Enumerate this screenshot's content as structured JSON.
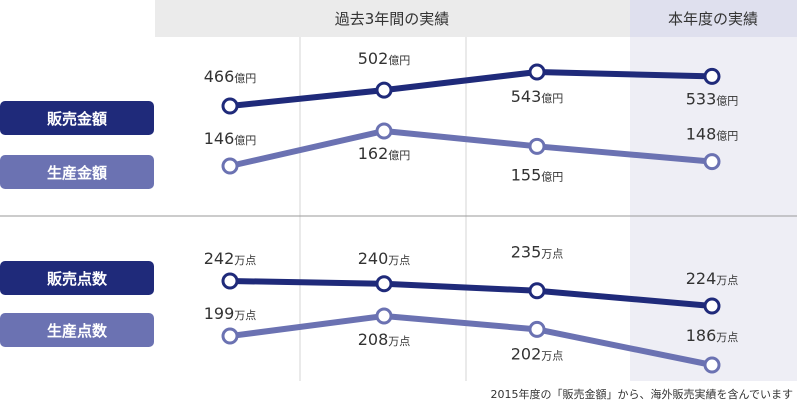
{
  "header": {
    "past_title": "過去3年間の実績",
    "current_title": "本年度の実績"
  },
  "footnote": "2015年度の「販売金額」から、海外販売実績を含んでいます",
  "colors": {
    "dark_series": "#1f2a7a",
    "light_series": "#6b72b2",
    "header_past_bg": "#ebebeb",
    "header_current_bg": "#dfe0ee",
    "current_column_bg": "#eeeef5",
    "grid": "#d6d6d6",
    "divider": "#9a9a9a"
  },
  "chart_data": [
    {
      "type": "line",
      "title": "",
      "x": [
        "",
        "",
        "",
        ""
      ],
      "series": [
        {
          "name": "販売金額",
          "values": [
            466,
            502,
            543,
            533
          ],
          "labels": [
            {
              "num": "466",
              "unit": "億円"
            },
            {
              "num": "502",
              "unit": "億円"
            },
            {
              "num": "543",
              "unit": "億円"
            },
            {
              "num": "533",
              "unit": "億円"
            }
          ]
        },
        {
          "name": "生産金額",
          "values": [
            146,
            162,
            155,
            148
          ],
          "labels": [
            {
              "num": "146",
              "unit": "億円"
            },
            {
              "num": "162",
              "unit": "億円"
            },
            {
              "num": "155",
              "unit": "億円"
            },
            {
              "num": "148",
              "unit": "億円"
            }
          ]
        }
      ]
    },
    {
      "type": "line",
      "title": "",
      "x": [
        "",
        "",
        "",
        ""
      ],
      "series": [
        {
          "name": "販売点数",
          "values": [
            242,
            240,
            235,
            224
          ],
          "labels": [
            {
              "num": "242",
              "unit": "万点"
            },
            {
              "num": "240",
              "unit": "万点"
            },
            {
              "num": "235",
              "unit": "万点"
            },
            {
              "num": "224",
              "unit": "万点"
            }
          ]
        },
        {
          "name": "生産点数",
          "values": [
            199,
            208,
            202,
            186
          ],
          "labels": [
            {
              "num": "199",
              "unit": "万点"
            },
            {
              "num": "208",
              "unit": "万点"
            },
            {
              "num": "202",
              "unit": "万点"
            },
            {
              "num": "186",
              "unit": "万点"
            }
          ]
        }
      ]
    }
  ]
}
